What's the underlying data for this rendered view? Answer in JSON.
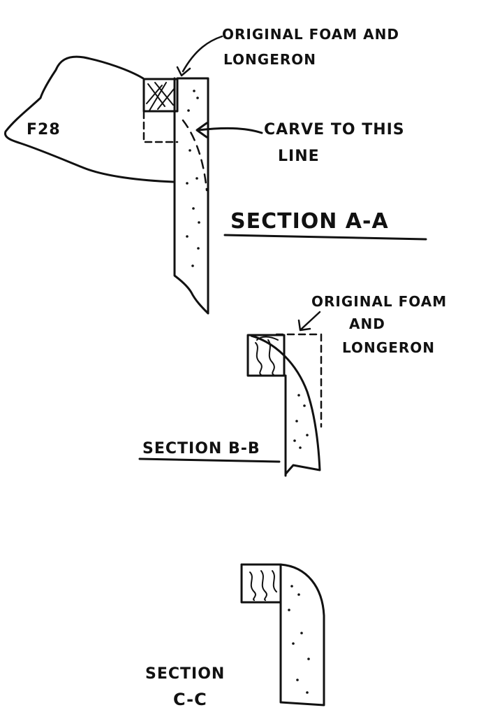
{
  "section_a": {
    "note_foam_line1": "ORIGINAL FOAM AND",
    "note_foam_line2": "LONGERON",
    "bulkhead_label": "F28",
    "note_carve_line1": "CARVE TO THIS",
    "note_carve_line2": "LINE",
    "title": "SECTION A-A"
  },
  "section_b": {
    "note_line1": "ORIGINAL FOAM",
    "note_line2": "AND",
    "note_line3": "LONGERON",
    "title": "SECTION B-B"
  },
  "section_c": {
    "title_line1": "SECTION",
    "title_line2": "C-C"
  },
  "colors": {
    "ink": "#111111",
    "paper": "#ffffff"
  }
}
